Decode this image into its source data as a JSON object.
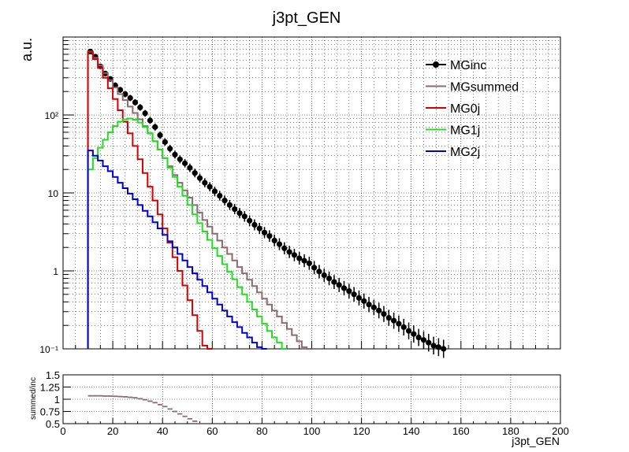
{
  "chart_data": [
    {
      "type": "line",
      "title": "j3pt_GEN",
      "xlabel": "",
      "ylabel": "a.u.",
      "xlim": [
        0,
        200
      ],
      "ylim": [
        0.1,
        1000
      ],
      "yscale": "log",
      "grid": true,
      "legend_position": "top-right",
      "x_ticks": [
        "0",
        "20",
        "40",
        "60",
        "80",
        "100",
        "120",
        "140",
        "160",
        "180",
        "200"
      ],
      "y_ticks": [
        "10⁻¹",
        "1",
        "10",
        "10²"
      ],
      "y_tick_values": [
        0.1,
        1,
        10,
        100
      ],
      "series": [
        {
          "name": "MGinc",
          "style": "points",
          "color": "#000000",
          "points": [
            [
              11,
              650
            ],
            [
              13,
              560
            ],
            [
              15,
              420
            ],
            [
              17,
              340
            ],
            [
              19,
              290
            ],
            [
              21,
              240
            ],
            [
              23,
              210
            ],
            [
              25,
              185
            ],
            [
              27,
              165
            ],
            [
              29,
              145
            ],
            [
              31,
              125
            ],
            [
              33,
              105
            ],
            [
              35,
              85
            ],
            [
              37,
              70
            ],
            [
              39,
              55
            ],
            [
              41,
              45
            ],
            [
              43,
              37
            ],
            [
              45,
              31
            ],
            [
              47,
              27
            ],
            [
              49,
              24
            ],
            [
              51,
              21
            ],
            [
              53,
              18
            ],
            [
              55,
              15.5
            ],
            [
              57,
              13.5
            ],
            [
              59,
              12
            ],
            [
              61,
              10.5
            ],
            [
              63,
              9.2
            ],
            [
              65,
              8.0
            ],
            [
              67,
              7.0
            ],
            [
              69,
              6.2
            ],
            [
              71,
              5.5
            ],
            [
              73,
              5.0
            ],
            [
              75,
              4.4
            ],
            [
              77,
              3.9
            ],
            [
              79,
              3.5
            ],
            [
              81,
              3.1
            ],
            [
              83,
              2.8
            ],
            [
              85,
              2.45
            ],
            [
              87,
              2.2
            ],
            [
              89,
              1.95
            ],
            [
              91,
              1.75
            ],
            [
              93,
              1.6
            ],
            [
              95,
              1.45
            ],
            [
              97,
              1.35
            ],
            [
              99,
              1.25
            ],
            [
              101,
              1.1
            ],
            [
              103,
              0.98
            ],
            [
              105,
              0.88
            ],
            [
              107,
              0.8
            ],
            [
              109,
              0.72
            ],
            [
              111,
              0.66
            ],
            [
              113,
              0.6
            ],
            [
              115,
              0.55
            ],
            [
              117,
              0.5
            ],
            [
              119,
              0.45
            ],
            [
              121,
              0.41
            ],
            [
              123,
              0.37
            ],
            [
              125,
              0.34
            ],
            [
              127,
              0.31
            ],
            [
              129,
              0.28
            ],
            [
              131,
              0.25
            ],
            [
              133,
              0.23
            ],
            [
              135,
              0.21
            ],
            [
              137,
              0.19
            ],
            [
              139,
              0.17
            ],
            [
              141,
              0.155
            ],
            [
              143,
              0.14
            ],
            [
              145,
              0.13
            ],
            [
              147,
              0.12
            ],
            [
              149,
              0.11
            ],
            [
              151,
              0.105
            ],
            [
              153,
              0.1
            ]
          ]
        },
        {
          "name": "MGsummed",
          "style": "step",
          "color": "#8a6a70",
          "points": [
            [
              11,
              650
            ],
            [
              13,
              540
            ],
            [
              15,
              430
            ],
            [
              17,
              345
            ],
            [
              19,
              280
            ],
            [
              21,
              225
            ],
            [
              23,
              185
            ],
            [
              25,
              155
            ],
            [
              27,
              128
            ],
            [
              29,
              106
            ],
            [
              31,
              88
            ],
            [
              33,
              72
            ],
            [
              35,
              58
            ],
            [
              37,
              46
            ],
            [
              39,
              36
            ],
            [
              41,
              28
            ],
            [
              43,
              22
            ],
            [
              45,
              17
            ],
            [
              47,
              13.5
            ],
            [
              49,
              10.8
            ],
            [
              51,
              8.7
            ],
            [
              53,
              7.0
            ],
            [
              55,
              5.6
            ],
            [
              57,
              4.5
            ],
            [
              59,
              3.7
            ],
            [
              61,
              3.0
            ],
            [
              63,
              2.45
            ],
            [
              65,
              2.0
            ],
            [
              67,
              1.65
            ],
            [
              69,
              1.36
            ],
            [
              71,
              1.12
            ],
            [
              73,
              0.93
            ],
            [
              75,
              0.77
            ],
            [
              77,
              0.64
            ],
            [
              79,
              0.53
            ],
            [
              81,
              0.44
            ],
            [
              83,
              0.37
            ],
            [
              85,
              0.31
            ],
            [
              87,
              0.26
            ],
            [
              89,
              0.215
            ],
            [
              91,
              0.18
            ],
            [
              93,
              0.15
            ],
            [
              95,
              0.125
            ],
            [
              97,
              0.105
            ],
            [
              99,
              0.1
            ]
          ]
        },
        {
          "name": "MG0j",
          "style": "step",
          "color": "#d40000",
          "points": [
            [
              11,
              640
            ],
            [
              13,
              520
            ],
            [
              15,
              400
            ],
            [
              17,
              300
            ],
            [
              19,
              220
            ],
            [
              21,
              160
            ],
            [
              23,
              115
            ],
            [
              25,
              82
            ],
            [
              27,
              58
            ],
            [
              29,
              40
            ],
            [
              31,
              27
            ],
            [
              33,
              18
            ],
            [
              35,
              12
            ],
            [
              37,
              8
            ],
            [
              39,
              5.3
            ],
            [
              41,
              3.5
            ],
            [
              43,
              2.3
            ],
            [
              45,
              1.5
            ],
            [
              47,
              1.0
            ],
            [
              49,
              0.65
            ],
            [
              51,
              0.42
            ],
            [
              53,
              0.27
            ],
            [
              55,
              0.17
            ],
            [
              57,
              0.11
            ],
            [
              59,
              0.1
            ]
          ]
        },
        {
          "name": "MG1j",
          "style": "step",
          "color": "#22dd22",
          "points": [
            [
              11,
              20
            ],
            [
              13,
              28
            ],
            [
              15,
              38
            ],
            [
              17,
              48
            ],
            [
              19,
              60
            ],
            [
              21,
              72
            ],
            [
              23,
              82
            ],
            [
              25,
              88
            ],
            [
              27,
              90
            ],
            [
              29,
              87
            ],
            [
              31,
              80
            ],
            [
              33,
              70
            ],
            [
              35,
              58
            ],
            [
              37,
              46
            ],
            [
              39,
              36
            ],
            [
              41,
              28
            ],
            [
              43,
              21
            ],
            [
              45,
              16
            ],
            [
              47,
              12
            ],
            [
              49,
              9.2
            ],
            [
              51,
              7.0
            ],
            [
              53,
              5.3
            ],
            [
              55,
              4.1
            ],
            [
              57,
              3.2
            ],
            [
              59,
              2.5
            ],
            [
              61,
              1.95
            ],
            [
              63,
              1.55
            ],
            [
              65,
              1.22
            ],
            [
              67,
              0.97
            ],
            [
              69,
              0.78
            ],
            [
              71,
              0.62
            ],
            [
              73,
              0.5
            ],
            [
              75,
              0.4
            ],
            [
              77,
              0.32
            ],
            [
              79,
              0.26
            ],
            [
              81,
              0.21
            ],
            [
              83,
              0.17
            ],
            [
              85,
              0.14
            ],
            [
              87,
              0.12
            ],
            [
              89,
              0.1
            ]
          ]
        },
        {
          "name": "MG2j",
          "style": "step",
          "color": "#0000cc",
          "points": [
            [
              11,
              35
            ],
            [
              13,
              30
            ],
            [
              15,
              26
            ],
            [
              17,
              22
            ],
            [
              19,
              19
            ],
            [
              21,
              16
            ],
            [
              23,
              13.5
            ],
            [
              25,
              11.5
            ],
            [
              27,
              9.8
            ],
            [
              29,
              8.3
            ],
            [
              31,
              7.0
            ],
            [
              33,
              5.9
            ],
            [
              35,
              5.0
            ],
            [
              37,
              4.2
            ],
            [
              39,
              3.5
            ],
            [
              41,
              2.9
            ],
            [
              43,
              2.4
            ],
            [
              45,
              2.0
            ],
            [
              47,
              1.65
            ],
            [
              49,
              1.36
            ],
            [
              51,
              1.12
            ],
            [
              53,
              0.93
            ],
            [
              55,
              0.77
            ],
            [
              57,
              0.64
            ],
            [
              59,
              0.53
            ],
            [
              61,
              0.44
            ],
            [
              63,
              0.37
            ],
            [
              65,
              0.31
            ],
            [
              67,
              0.26
            ],
            [
              69,
              0.22
            ],
            [
              71,
              0.19
            ],
            [
              73,
              0.16
            ],
            [
              75,
              0.14
            ],
            [
              77,
              0.12
            ],
            [
              79,
              0.105
            ],
            [
              81,
              0.1
            ]
          ]
        }
      ]
    },
    {
      "type": "line",
      "title": "",
      "xlabel": "j3pt_GEN",
      "ylabel": "summed/inc",
      "xlim": [
        0,
        200
      ],
      "ylim": [
        0.5,
        1.5
      ],
      "grid": true,
      "x_ticks": [
        "0",
        "20",
        "40",
        "60",
        "80",
        "100",
        "120",
        "140",
        "160",
        "180",
        "200"
      ],
      "y_ticks": [
        "0.5",
        "0.75",
        "1",
        "1.25",
        "1.5"
      ],
      "y_tick_values": [
        0.5,
        0.75,
        1,
        1.25,
        1.5
      ],
      "series": [
        {
          "name": "",
          "style": "step",
          "color": "#8a6a70",
          "points": [
            [
              11,
              1.07
            ],
            [
              13,
              1.07
            ],
            [
              15,
              1.07
            ],
            [
              17,
              1.065
            ],
            [
              19,
              1.065
            ],
            [
              21,
              1.06
            ],
            [
              23,
              1.055
            ],
            [
              25,
              1.05
            ],
            [
              27,
              1.04
            ],
            [
              29,
              1.03
            ],
            [
              31,
              1.01
            ],
            [
              33,
              0.99
            ],
            [
              35,
              0.96
            ],
            [
              37,
              0.93
            ],
            [
              39,
              0.89
            ],
            [
              41,
              0.85
            ],
            [
              43,
              0.8
            ],
            [
              45,
              0.75
            ],
            [
              47,
              0.7
            ],
            [
              49,
              0.65
            ],
            [
              51,
              0.6
            ],
            [
              53,
              0.55
            ],
            [
              55,
              0.5
            ]
          ]
        }
      ]
    }
  ]
}
